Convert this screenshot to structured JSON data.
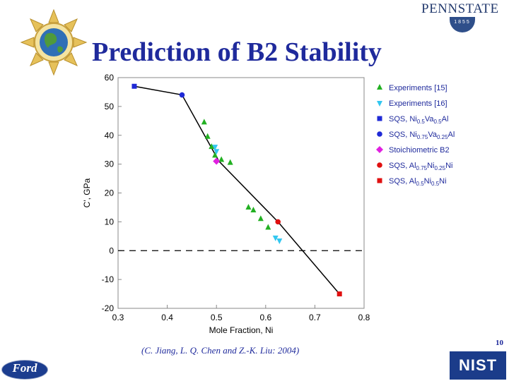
{
  "slide": {
    "title": "Prediction of B2 Stability",
    "citation": "(C. Jiang, L. Q. Chen and Z.-K. Liu: 2004)",
    "page_number": "10"
  },
  "logos": {
    "penn_state": "PENNSTATE",
    "penn_state_year": "1855",
    "ford": "Ford",
    "nist": "NIST"
  },
  "colors": {
    "title": "#1f2a9c",
    "green": "#22b022",
    "cyan": "#33c7f0",
    "blue": "#1f2ad6",
    "magenta": "#e020e0",
    "red": "#e01010"
  },
  "chart_data": {
    "type": "scatter",
    "xlabel": "Mole Fraction, Ni",
    "ylabel": "C', GPa",
    "xlim": [
      0.3,
      0.8
    ],
    "ylim": [
      -20,
      60
    ],
    "x_ticks": [
      0.3,
      0.4,
      0.5,
      0.6,
      0.7,
      0.8
    ],
    "y_ticks": [
      -20,
      -10,
      0,
      10,
      20,
      30,
      40,
      50,
      60
    ],
    "grid": false,
    "legend_placement": "right, outside plot",
    "reference_line": {
      "y": 0,
      "style": "dashed"
    },
    "fit_line": {
      "x": [
        0.333,
        0.43,
        0.505,
        0.625,
        0.75
      ],
      "y": [
        57,
        54,
        31,
        10,
        -15
      ]
    },
    "series": [
      {
        "name": "Experiments [15]",
        "marker": "triangle-up",
        "color": "#22b022",
        "x": [
          0.475,
          0.482,
          0.49,
          0.497,
          0.51,
          0.528,
          0.565,
          0.575,
          0.59,
          0.605
        ],
        "y": [
          44.5,
          39.5,
          36,
          33,
          31.5,
          30.5,
          15,
          14,
          11,
          8
        ]
      },
      {
        "name": "Experiments [16]",
        "marker": "triangle-down",
        "color": "#33c7f0",
        "x": [
          0.497,
          0.5,
          0.62,
          0.628
        ],
        "y": [
          36,
          34.5,
          4.5,
          3.5
        ]
      },
      {
        "name": "SQS, Ni0.5Va0.5Al",
        "marker": "square",
        "color": "#1f2ad6",
        "x": [
          0.333
        ],
        "y": [
          57
        ]
      },
      {
        "name": "SQS, Ni0.75Va0.25Al",
        "marker": "circle",
        "color": "#1f2ad6",
        "x": [
          0.43
        ],
        "y": [
          54
        ]
      },
      {
        "name": "Stoichiometric B2",
        "marker": "diamond",
        "color": "#e020e0",
        "x": [
          0.5
        ],
        "y": [
          31
        ]
      },
      {
        "name": "SQS, Al0.75Ni0.25Ni",
        "marker": "circle",
        "color": "#e01010",
        "x": [
          0.625
        ],
        "y": [
          10
        ]
      },
      {
        "name": "SQS, Al0.5Ni0.5Ni",
        "marker": "square",
        "color": "#e01010",
        "x": [
          0.75
        ],
        "y": [
          -15
        ]
      }
    ],
    "legend": [
      {
        "marker": "triangle-up",
        "color": "#22b022",
        "text": "Experiments [15]"
      },
      {
        "marker": "triangle-down",
        "color": "#33c7f0",
        "text": "Experiments [16]"
      },
      {
        "marker": "square",
        "color": "#1f2ad6",
        "parts": [
          [
            "SQS, Ni",
            ""
          ],
          [
            "0.5",
            "sub"
          ],
          [
            "Va",
            ""
          ],
          [
            "0.5",
            "sub"
          ],
          [
            "Al",
            ""
          ]
        ]
      },
      {
        "marker": "circle",
        "color": "#1f2ad6",
        "parts": [
          [
            "SQS, Ni",
            ""
          ],
          [
            "0.75",
            "sub"
          ],
          [
            "Va",
            ""
          ],
          [
            "0.25",
            "sub"
          ],
          [
            "Al",
            ""
          ]
        ]
      },
      {
        "marker": "diamond",
        "color": "#e020e0",
        "text": "Stoichiometric B2"
      },
      {
        "marker": "circle",
        "color": "#e01010",
        "parts": [
          [
            "SQS, Al",
            ""
          ],
          [
            "0.75",
            "sub"
          ],
          [
            "Ni",
            ""
          ],
          [
            "0.25",
            "sub"
          ],
          [
            "Ni",
            ""
          ]
        ]
      },
      {
        "marker": "square",
        "color": "#e01010",
        "parts": [
          [
            "SQS, Al",
            ""
          ],
          [
            "0.5",
            "sub"
          ],
          [
            "Ni",
            ""
          ],
          [
            "0.5",
            "sub"
          ],
          [
            "Ni",
            ""
          ]
        ]
      }
    ]
  }
}
